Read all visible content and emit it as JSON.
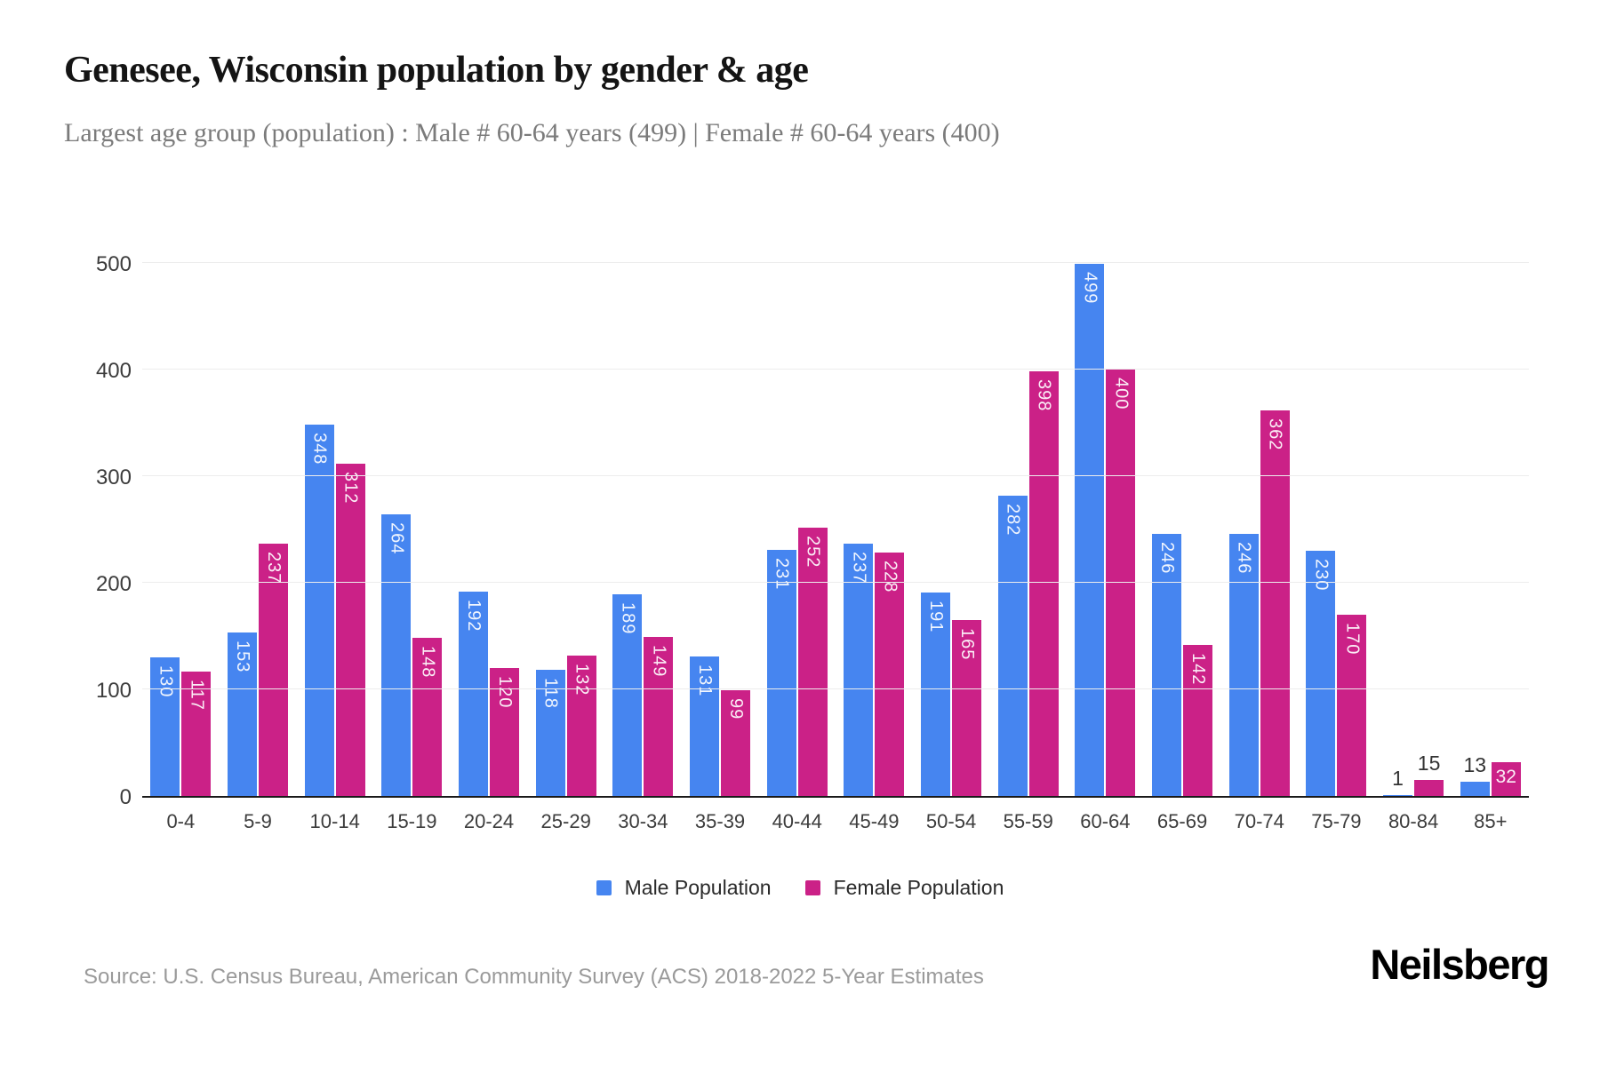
{
  "header": {
    "title": "Genesee, Wisconsin population by gender & age",
    "subtitle": "Largest age group (population) : Male # 60-64 years (499) | Female # 60-64 years (400)"
  },
  "chart_data": {
    "type": "bar",
    "title": "Genesee, Wisconsin population by gender & age",
    "categories": [
      "0-4",
      "5-9",
      "10-14",
      "15-19",
      "20-24",
      "25-29",
      "30-34",
      "35-39",
      "40-44",
      "45-49",
      "50-54",
      "55-59",
      "60-64",
      "65-69",
      "70-74",
      "75-79",
      "80-84",
      "85+"
    ],
    "series": [
      {
        "name": "Male Population",
        "color": "#4685F0",
        "values": [
          130,
          153,
          348,
          264,
          192,
          118,
          189,
          131,
          231,
          237,
          191,
          282,
          499,
          246,
          246,
          230,
          1,
          13
        ]
      },
      {
        "name": "Female Population",
        "color": "#CB2187",
        "values": [
          117,
          237,
          312,
          148,
          120,
          132,
          149,
          99,
          252,
          228,
          165,
          398,
          400,
          142,
          362,
          170,
          15,
          32
        ]
      }
    ],
    "xlabel": "",
    "ylabel": "",
    "ylim": [
      0,
      500
    ],
    "yticks": [
      0,
      100,
      200,
      300,
      400,
      500
    ],
    "grid": "horizontal",
    "legend_position": "bottom",
    "bar_value_labels": "shown"
  },
  "colors": {
    "male": "#4685F0",
    "female": "#CB2187",
    "gridline": "#ededed",
    "axis_line": "#1a1a1a"
  },
  "footer": {
    "source": "Source: U.S. Census Bureau, American Community Survey (ACS) 2018-2022 5-Year Estimates",
    "logo": "Neilsberg"
  }
}
